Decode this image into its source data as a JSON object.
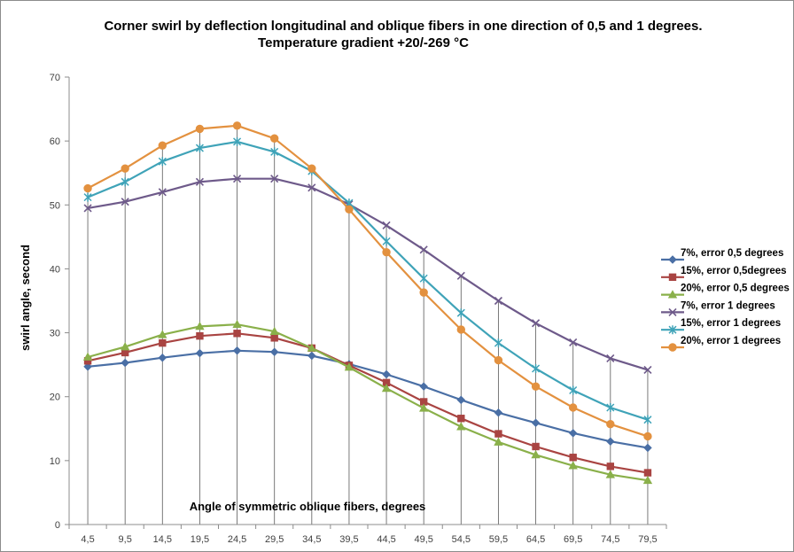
{
  "chart_data": {
    "type": "line",
    "title": "Corner swirl by deflection longitudinal and oblique fibers in one direction of 0,5 and 1 degrees.",
    "subtitle": "Temperature gradient +20/-269 °C",
    "xlabel": "Angle of symmetric oblique fibers, degrees",
    "ylabel": "swirl angle, second",
    "ylim": [
      0,
      70
    ],
    "yticks": [
      "0",
      "10",
      "20",
      "30",
      "40",
      "50",
      "60",
      "70"
    ],
    "grid": false,
    "drop_lines": true,
    "legend_position": "right",
    "categories": [
      "4,5",
      "9,5",
      "14,5",
      "19,5",
      "24,5",
      "29,5",
      "34,5",
      "39,5",
      "44,5",
      "49,5",
      "54,5",
      "59,5",
      "64,5",
      "69,5",
      "74,5",
      "79,5"
    ],
    "series": [
      {
        "name": "7%, error 0,5 degrees",
        "color": "#4a6fa5",
        "marker": "diamond",
        "values": [
          24.7,
          25.3,
          26.1,
          26.8,
          27.2,
          27.0,
          26.4,
          25.1,
          23.5,
          21.6,
          19.5,
          17.5,
          15.9,
          14.3,
          13.0,
          12.0
        ]
      },
      {
        "name": "15%, error 0,5degrees",
        "color": "#a94442",
        "marker": "square",
        "values": [
          25.6,
          26.9,
          28.4,
          29.5,
          29.9,
          29.2,
          27.6,
          24.9,
          22.2,
          19.2,
          16.6,
          14.2,
          12.2,
          10.5,
          9.1,
          8.1
        ]
      },
      {
        "name": "20%, error 0,5 degrees",
        "color": "#8ab04a",
        "marker": "triangle",
        "values": [
          26.2,
          27.8,
          29.7,
          31.0,
          31.3,
          30.2,
          27.6,
          24.6,
          21.3,
          18.2,
          15.3,
          12.9,
          10.9,
          9.2,
          7.8,
          6.9
        ]
      },
      {
        "name": "7%, error 1 degrees",
        "color": "#6e5a8a",
        "marker": "x",
        "values": [
          49.5,
          50.5,
          52.0,
          53.6,
          54.1,
          54.1,
          52.7,
          50.1,
          46.8,
          43.0,
          38.9,
          35.0,
          31.5,
          28.5,
          26.0,
          24.2
        ]
      },
      {
        "name": "15%, error 1 degrees",
        "color": "#3fa3b8",
        "marker": "star",
        "values": [
          51.2,
          53.6,
          56.8,
          58.9,
          59.9,
          58.3,
          55.3,
          50.3,
          44.3,
          38.5,
          33.1,
          28.4,
          24.4,
          21.0,
          18.3,
          16.4
        ]
      },
      {
        "name": "20%, error 1 degrees",
        "color": "#e3913f",
        "marker": "circle",
        "values": [
          52.6,
          55.7,
          59.3,
          61.9,
          62.4,
          60.4,
          55.7,
          49.3,
          42.6,
          36.3,
          30.5,
          25.7,
          21.6,
          18.3,
          15.7,
          13.8
        ]
      }
    ]
  }
}
